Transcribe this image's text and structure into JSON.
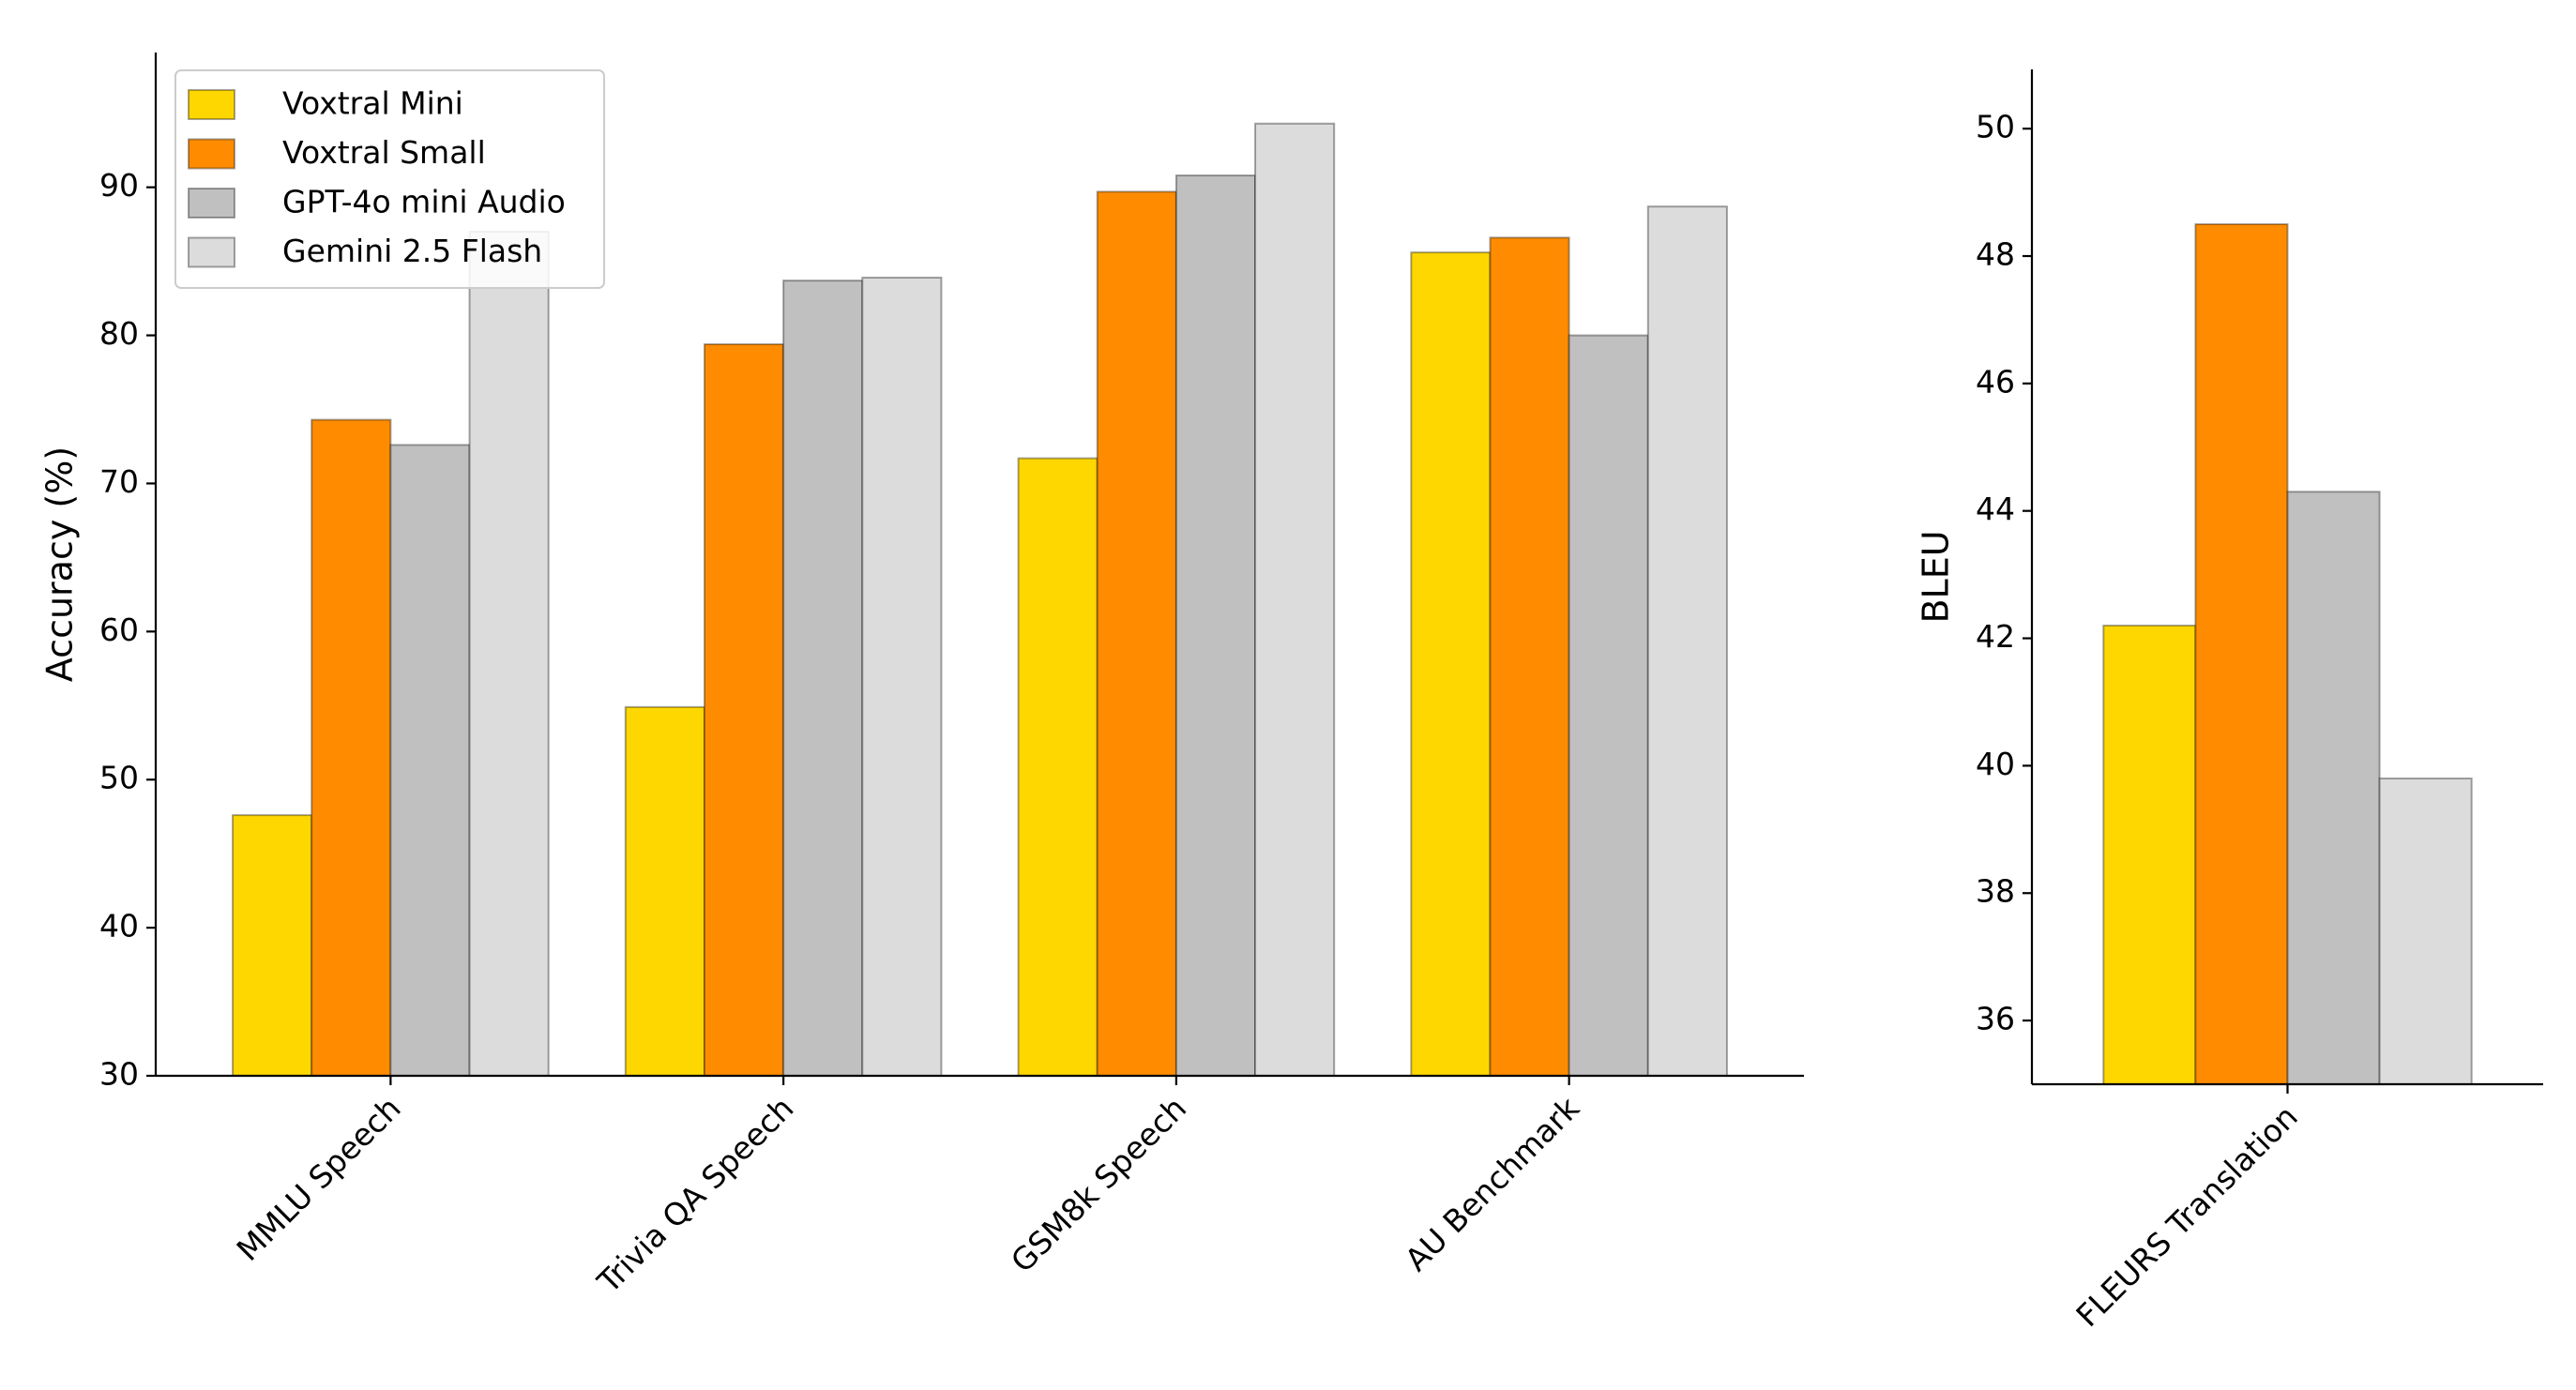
{
  "chart_data": [
    {
      "type": "bar",
      "y_label": "Accuracy (%)",
      "categories": [
        "MMLU Speech",
        "Trivia QA Speech",
        "GSM8k Speech",
        "AU Benchmark"
      ],
      "series": [
        {
          "name": "Voxtral Mini",
          "color": "#FFD700",
          "values": [
            47.6,
            54.9,
            71.7,
            85.6
          ]
        },
        {
          "name": "Voxtral Small",
          "color": "#FF8C00",
          "values": [
            74.3,
            79.4,
            89.7,
            86.6
          ]
        },
        {
          "name": "GPT-4o mini Audio",
          "color": "#C0C0C0",
          "values": [
            72.6,
            83.7,
            90.8,
            80.0
          ]
        },
        {
          "name": "Gemini 2.5 Flash",
          "color": "#DCDCDC",
          "values": [
            87,
            83.9,
            94.3,
            88.7
          ]
        }
      ],
      "ylim": [
        30,
        99.1
      ],
      "yticks": [
        30,
        40,
        50,
        60,
        70,
        80,
        90
      ],
      "legend": "upper left"
    },
    {
      "type": "bar",
      "y_label": "BLEU",
      "categories": [
        "FLEURS Translation"
      ],
      "series": [
        {
          "color": "#FFD700",
          "values": [
            42.2
          ]
        },
        {
          "color": "#FF8C00",
          "values": [
            48.5
          ]
        },
        {
          "color": "#C0C0C0",
          "values": [
            44.3
          ]
        },
        {
          "color": "#DCDCDC",
          "values": [
            39.8
          ]
        }
      ],
      "ylim": [
        35,
        50.93
      ],
      "yticks": [
        36,
        38,
        40,
        42,
        44,
        46,
        48,
        50
      ]
    }
  ]
}
